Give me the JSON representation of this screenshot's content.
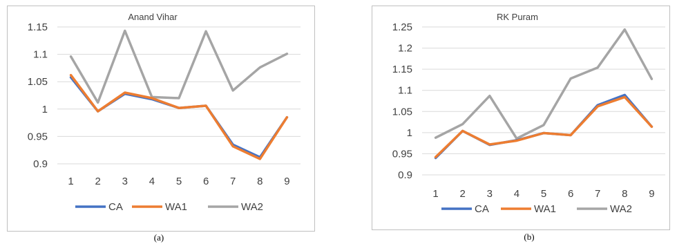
{
  "chart_data": [
    {
      "type": "line",
      "title": "Anand Vihar",
      "categories": [
        "1",
        "2",
        "3",
        "4",
        "5",
        "6",
        "7",
        "8",
        "9"
      ],
      "ylim": [
        0.9,
        1.15
      ],
      "yticks": [
        "0.9",
        "0.95",
        "1",
        "1.05",
        "1.1",
        "1.15"
      ],
      "grid": true,
      "legend_position": "bottom",
      "series": [
        {
          "name": "CA",
          "color": "#4472C4",
          "values": [
            1.058,
            0.996,
            1.028,
            1.018,
            1.002,
            1.006,
            0.935,
            0.912,
            0.985
          ]
        },
        {
          "name": "WA1",
          "color": "#ED7D31",
          "values": [
            1.062,
            0.996,
            1.03,
            1.02,
            1.002,
            1.006,
            0.932,
            0.909,
            0.985
          ]
        },
        {
          "name": "WA2",
          "color": "#A5A5A5",
          "values": [
            1.096,
            1.012,
            1.143,
            1.022,
            1.02,
            1.142,
            1.034,
            1.076,
            1.101
          ]
        }
      ],
      "caption": "(a)"
    },
    {
      "type": "line",
      "title": "RK Puram",
      "categories": [
        "1",
        "2",
        "3",
        "4",
        "5",
        "6",
        "7",
        "8",
        "9"
      ],
      "ylim": [
        0.9,
        1.25
      ],
      "yticks": [
        "0.9",
        "0.95",
        "1",
        "1.05",
        "1.1",
        "1.15",
        "1.2",
        "1.25"
      ],
      "grid": true,
      "legend_position": "bottom",
      "series": [
        {
          "name": "CA",
          "color": "#4472C4",
          "values": [
            0.94,
            1.004,
            0.971,
            0.982,
            0.999,
            0.994,
            1.065,
            1.089,
            1.014
          ]
        },
        {
          "name": "WA1",
          "color": "#ED7D31",
          "values": [
            0.942,
            1.004,
            0.972,
            0.981,
            0.999,
            0.994,
            1.062,
            1.084,
            1.014
          ]
        },
        {
          "name": "WA2",
          "color": "#A5A5A5",
          "values": [
            0.988,
            1.02,
            1.087,
            0.986,
            1.018,
            1.128,
            1.154,
            1.244,
            1.127
          ]
        }
      ],
      "caption": "(b)"
    }
  ]
}
